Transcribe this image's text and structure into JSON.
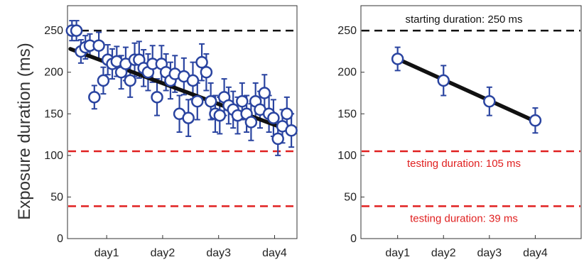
{
  "ylabel": "Exposure duration (ms)",
  "colors": {
    "data": "#2a44a0",
    "fit": "#111111",
    "start_line": "#111111",
    "test_line": "#e02020",
    "axis": "#333333"
  },
  "chart_data": [
    {
      "type": "scatter",
      "title": "",
      "xlabel": "",
      "ylabel": "Exposure duration (ms)",
      "ylim": [
        0,
        280
      ],
      "xlim": [
        0.3,
        4.4
      ],
      "yticks": [
        0,
        50,
        100,
        150,
        200,
        250
      ],
      "xtick_labels": [
        "day1",
        "day2",
        "day3",
        "day4"
      ],
      "xticks": [
        1,
        2,
        3,
        4
      ],
      "grid": false,
      "series": [
        {
          "x": [
            0.38,
            0.46,
            0.54,
            0.62,
            0.7,
            0.78,
            0.86,
            0.94,
            1.02,
            1.1,
            1.18,
            1.26,
            1.34,
            1.42,
            1.5,
            1.58,
            1.66,
            1.74,
            1.82,
            1.9,
            1.98,
            2.06,
            2.14,
            2.22,
            2.3,
            2.38,
            2.46,
            2.54,
            2.62,
            2.7,
            2.78,
            2.86,
            2.94,
            3.02,
            3.1,
            3.18,
            3.26,
            3.34,
            3.42,
            3.5,
            3.58,
            3.66,
            3.74,
            3.82,
            3.9,
            3.98,
            4.06,
            4.14,
            4.22,
            4.3
          ],
          "y": [
            250,
            250,
            225,
            230,
            232,
            170,
            232,
            190,
            215,
            210,
            213,
            200,
            210,
            190,
            215,
            215,
            205,
            200,
            210,
            170,
            210,
            200,
            190,
            198,
            150,
            195,
            145,
            190,
            165,
            212,
            200,
            165,
            150,
            148,
            170,
            160,
            155,
            148,
            165,
            150,
            140,
            165,
            155,
            175,
            150,
            145,
            120,
            135,
            150,
            130
          ],
          "err": [
            12,
            12,
            14,
            14,
            14,
            14,
            16,
            16,
            18,
            18,
            18,
            20,
            20,
            20,
            20,
            22,
            22,
            22,
            22,
            22,
            22,
            22,
            22,
            22,
            22,
            22,
            22,
            22,
            22,
            22,
            22,
            22,
            22,
            22,
            22,
            22,
            22,
            22,
            22,
            22,
            22,
            22,
            22,
            22,
            22,
            22,
            20,
            20,
            20,
            20
          ]
        }
      ],
      "fit": {
        "x": [
          0.3,
          4.4
        ],
        "y": [
          228,
          128
        ]
      },
      "hlines": [
        {
          "y": 250,
          "style": "dashed",
          "color": "#111111",
          "label": ""
        },
        {
          "y": 105,
          "style": "dashed",
          "color": "#e02020",
          "label": ""
        },
        {
          "y": 39,
          "style": "dashed",
          "color": "#e02020",
          "label": ""
        }
      ]
    },
    {
      "type": "scatter",
      "title": "",
      "xlabel": "",
      "ylabel": "",
      "ylim": [
        0,
        280
      ],
      "xlim": [
        0.2,
        5.0
      ],
      "yticks": [
        0,
        50,
        100,
        150,
        200,
        250
      ],
      "xtick_labels": [
        "day1",
        "day2",
        "day3",
        "day4"
      ],
      "xticks": [
        1,
        2,
        3,
        4
      ],
      "grid": false,
      "series": [
        {
          "x": [
            1,
            2,
            3,
            4
          ],
          "y": [
            216,
            190,
            165,
            142
          ],
          "err": [
            14,
            18,
            17,
            15
          ]
        }
      ],
      "fit": {
        "x": [
          1,
          4
        ],
        "y": [
          216,
          141
        ]
      },
      "hlines": [
        {
          "y": 250,
          "style": "dashed",
          "color": "#111111",
          "label": "starting duration: 250 ms"
        },
        {
          "y": 105,
          "style": "dashed",
          "color": "#e02020",
          "label": "testing duration: 105 ms"
        },
        {
          "y": 39,
          "style": "dashed",
          "color": "#e02020",
          "label": "testing duration: 39 ms"
        }
      ]
    }
  ]
}
